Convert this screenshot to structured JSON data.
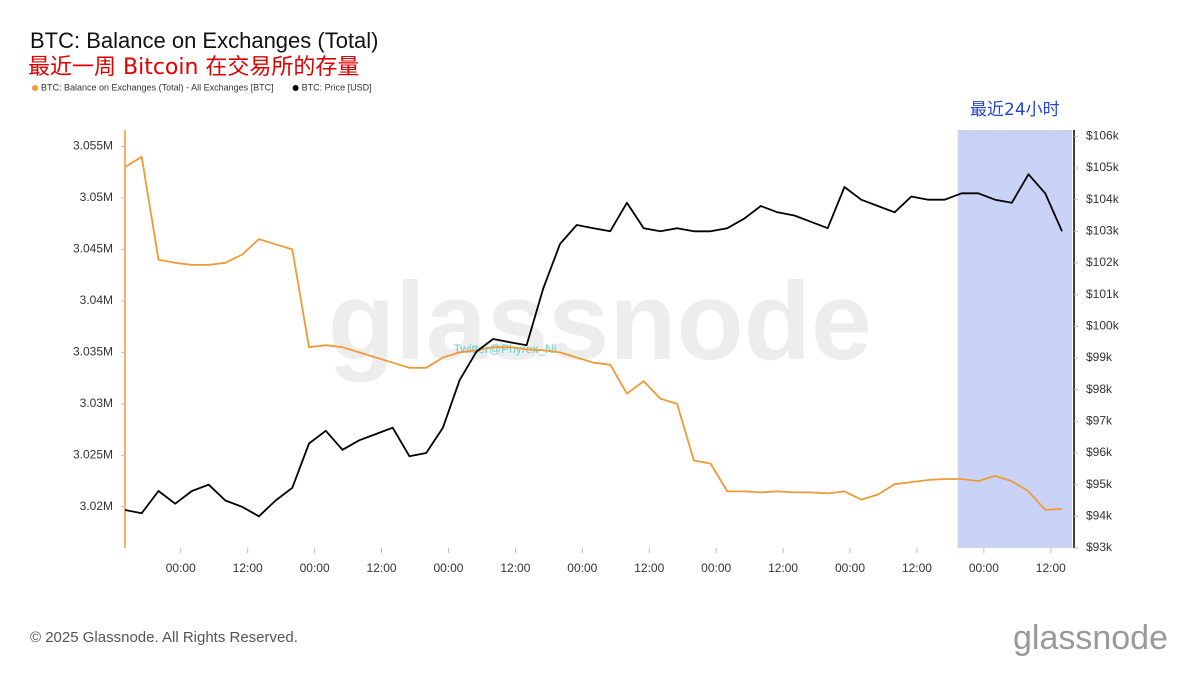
{
  "chart_data": {
    "type": "line",
    "title": "BTC: Balance on Exchanges (Total)",
    "subtitle": "最近一周 Bitcoin 在交易所的存量",
    "watermark": "glassnode",
    "credit_watermark": "Twitter@Phyrex_Ni",
    "footer": "© 2025 Glassnode. All Rights Reserved.",
    "logo": "glassnode",
    "highlight": {
      "x": [
        149.3,
        169.8
      ],
      "label": "最近24小时",
      "color": "#c9d3f7"
    },
    "x": [
      0,
      3,
      6,
      9,
      12,
      15,
      18,
      21,
      24,
      27,
      30,
      33,
      36,
      39,
      42,
      45,
      48,
      51,
      54,
      57,
      60,
      63,
      66,
      69,
      72,
      75,
      78,
      81,
      84,
      87,
      90,
      93,
      96,
      99,
      102,
      105,
      108,
      111,
      114,
      117,
      120,
      123,
      126,
      129,
      132,
      135,
      138,
      141,
      144,
      147,
      150,
      153,
      156,
      159,
      162,
      165,
      168
    ],
    "xlim": [
      0,
      169.8
    ],
    "xticks": [
      {
        "value": 10,
        "label": "00:00"
      },
      {
        "value": 22,
        "label": "12:00"
      },
      {
        "value": 34,
        "label": "00:00"
      },
      {
        "value": 46,
        "label": "12:00"
      },
      {
        "value": 58,
        "label": "00:00"
      },
      {
        "value": 70,
        "label": "12:00"
      },
      {
        "value": 82,
        "label": "00:00"
      },
      {
        "value": 94,
        "label": "12:00"
      },
      {
        "value": 106,
        "label": "00:00"
      },
      {
        "value": 118,
        "label": "12:00"
      },
      {
        "value": 130,
        "label": "00:00"
      },
      {
        "value": 142,
        "label": "12:00"
      },
      {
        "value": 154,
        "label": "00:00"
      },
      {
        "value": 166,
        "label": "12:00"
      }
    ],
    "ylim": [
      3016000,
      3056600
    ],
    "yticks": [
      {
        "value": 3020000,
        "label": "3.02M"
      },
      {
        "value": 3025000,
        "label": "3.025M"
      },
      {
        "value": 3030000,
        "label": "3.03M"
      },
      {
        "value": 3035000,
        "label": "3.035M"
      },
      {
        "value": 3040000,
        "label": "3.04M"
      },
      {
        "value": 3045000,
        "label": "3.045M"
      },
      {
        "value": 3050000,
        "label": "3.05M"
      },
      {
        "value": 3055000,
        "label": "3.055M"
      }
    ],
    "y2lim": [
      93000,
      106200
    ],
    "y2ticks": [
      {
        "value": 93000,
        "label": "$93k"
      },
      {
        "value": 94000,
        "label": "$94k"
      },
      {
        "value": 95000,
        "label": "$95k"
      },
      {
        "value": 96000,
        "label": "$96k"
      },
      {
        "value": 97000,
        "label": "$97k"
      },
      {
        "value": 98000,
        "label": "$98k"
      },
      {
        "value": 99000,
        "label": "$99k"
      },
      {
        "value": 100000,
        "label": "$100k"
      },
      {
        "value": 101000,
        "label": "$101k"
      },
      {
        "value": 102000,
        "label": "$102k"
      },
      {
        "value": 103000,
        "label": "$103k"
      },
      {
        "value": 104000,
        "label": "$104k"
      },
      {
        "value": 105000,
        "label": "$105k"
      },
      {
        "value": 106000,
        "label": "$106k"
      }
    ],
    "legend": "top-left",
    "series": [
      {
        "name": "BTC: Balance on Exchanges (Total) - All Exchanges [BTC]",
        "color": "#f09a37",
        "axis": "y",
        "values": [
          3053000,
          3054000,
          3044000,
          3043700,
          3043500,
          3043500,
          3043700,
          3044500,
          3046000,
          3045500,
          3045000,
          3035500,
          3035700,
          3035500,
          3035000,
          3034500,
          3034000,
          3033500,
          3033500,
          3034500,
          3035000,
          3035200,
          3035500,
          3035500,
          3035300,
          3035200,
          3035000,
          3034500,
          3034000,
          3033800,
          3031000,
          3032200,
          3030500,
          3030000,
          3024500,
          3024200,
          3021500,
          3021500,
          3021400,
          3021500,
          3021400,
          3021400,
          3021300,
          3021500,
          3020700,
          3021200,
          3022200,
          3022400,
          3022600,
          3022700,
          3022700,
          3022500,
          3023000,
          3022500,
          3021500,
          3019700,
          3019800
        ]
      },
      {
        "name": "BTC: Price [USD]",
        "color": "#000000",
        "axis": "y2",
        "values": [
          94200,
          94100,
          94800,
          94400,
          94800,
          95000,
          94500,
          94300,
          94000,
          94500,
          94900,
          96300,
          96700,
          96100,
          96400,
          96600,
          96800,
          95900,
          96000,
          96800,
          98300,
          99200,
          99600,
          99500,
          99400,
          101200,
          102600,
          103200,
          103100,
          103000,
          103900,
          103100,
          103000,
          103100,
          103000,
          103000,
          103100,
          103400,
          103800,
          103600,
          103500,
          103300,
          103100,
          104400,
          104000,
          103800,
          103600,
          104100,
          104000,
          104000,
          104200,
          104200,
          104000,
          103900,
          104800,
          104200,
          103000
        ]
      }
    ]
  }
}
